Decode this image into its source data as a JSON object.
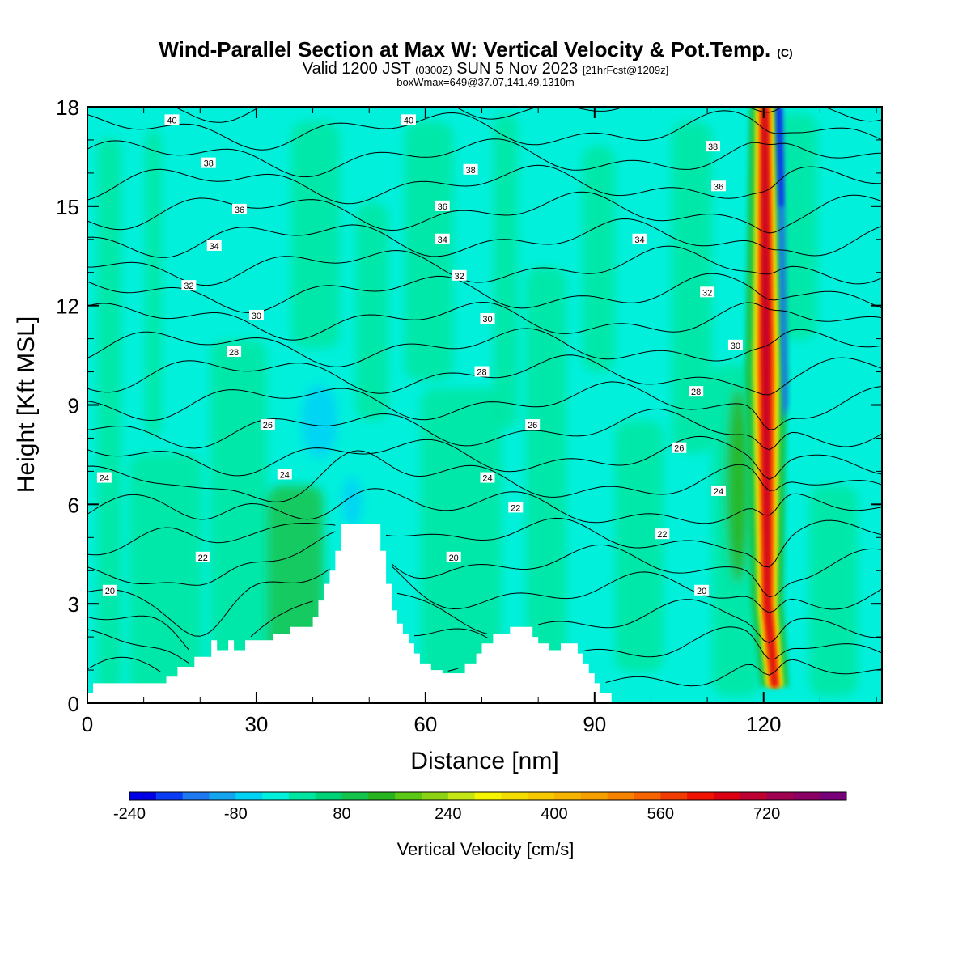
{
  "chart_data": {
    "type": "heatmap",
    "title": "Wind-Parallel Section at Max W: Vertical Velocity & Pot.Temp.",
    "title_mark": "(C)",
    "subtitle_main": "Valid 1200 JST",
    "subtitle_utc": "(0300Z)",
    "subtitle_date": "SUN 5 Nov 2023",
    "subtitle_fcst": "[21hrFcst@1209z]",
    "subtitle2": "boxWmax=649@37.07,141.49,1310m",
    "xlabel": "Distance [nm]",
    "ylabel": "Height [Kft MSL]",
    "xlim": [
      0,
      141
    ],
    "ylim": [
      0,
      18
    ],
    "x_ticks": [
      0,
      30,
      60,
      90,
      120
    ],
    "y_ticks": [
      0,
      3,
      6,
      9,
      12,
      15,
      18
    ],
    "colorbar": {
      "label": "Vertical Velocity [cm/s]",
      "tick_labels": [
        "-240",
        "-80",
        "80",
        "240",
        "400",
        "560",
        "720"
      ],
      "colors": [
        "#0000e6",
        "#0a3cf5",
        "#1e78f0",
        "#14a5f0",
        "#00d2f5",
        "#00f0dc",
        "#00e6a0",
        "#00d278",
        "#14c34b",
        "#28b41e",
        "#5ac814",
        "#8cd214",
        "#c3e614",
        "#f5f500",
        "#f5dc00",
        "#f5c800",
        "#f5b400",
        "#f5a000",
        "#f58200",
        "#f56400",
        "#f03c00",
        "#f01400",
        "#dc0014",
        "#be0032",
        "#a00050",
        "#8c0064",
        "#780078"
      ]
    },
    "terrain": [
      [
        0,
        0
      ],
      [
        0,
        0.3
      ],
      [
        1,
        0.3
      ],
      [
        1,
        0.6
      ],
      [
        14,
        0.6
      ],
      [
        14,
        0.8
      ],
      [
        16,
        0.8
      ],
      [
        16,
        1.1
      ],
      [
        19,
        1.1
      ],
      [
        19,
        1.4
      ],
      [
        22,
        1.4
      ],
      [
        22,
        1.9
      ],
      [
        23,
        1.9
      ],
      [
        23,
        1.6
      ],
      [
        25,
        1.6
      ],
      [
        25,
        1.9
      ],
      [
        26,
        1.9
      ],
      [
        26,
        1.6
      ],
      [
        28,
        1.6
      ],
      [
        28,
        1.9
      ],
      [
        33,
        1.9
      ],
      [
        33,
        2.1
      ],
      [
        36,
        2.1
      ],
      [
        36,
        2.3
      ],
      [
        40,
        2.3
      ],
      [
        40,
        2.6
      ],
      [
        41,
        2.6
      ],
      [
        41,
        3.1
      ],
      [
        42,
        3.1
      ],
      [
        42,
        3.6
      ],
      [
        43,
        3.6
      ],
      [
        43,
        4.0
      ],
      [
        44,
        4.0
      ],
      [
        44,
        4.6
      ],
      [
        45,
        4.6
      ],
      [
        45,
        5.4
      ],
      [
        52,
        5.4
      ],
      [
        52,
        4.6
      ],
      [
        53,
        4.6
      ],
      [
        53,
        3.6
      ],
      [
        54,
        3.6
      ],
      [
        54,
        2.8
      ],
      [
        55,
        2.8
      ],
      [
        55,
        2.4
      ],
      [
        56,
        2.4
      ],
      [
        56,
        2.1
      ],
      [
        57,
        2.1
      ],
      [
        57,
        1.8
      ],
      [
        58,
        1.8
      ],
      [
        58,
        1.5
      ],
      [
        59,
        1.5
      ],
      [
        59,
        1.2
      ],
      [
        61,
        1.2
      ],
      [
        61,
        1.0
      ],
      [
        63,
        1.0
      ],
      [
        63,
        0.9
      ],
      [
        67,
        0.9
      ],
      [
        67,
        1.2
      ],
      [
        69,
        1.2
      ],
      [
        69,
        1.5
      ],
      [
        70,
        1.5
      ],
      [
        70,
        1.8
      ],
      [
        72,
        1.8
      ],
      [
        72,
        2.1
      ],
      [
        75,
        2.1
      ],
      [
        75,
        2.3
      ],
      [
        79,
        2.3
      ],
      [
        79,
        2.0
      ],
      [
        80,
        2.0
      ],
      [
        80,
        1.8
      ],
      [
        82,
        1.8
      ],
      [
        82,
        1.6
      ],
      [
        84,
        1.6
      ],
      [
        84,
        1.8
      ],
      [
        87,
        1.8
      ],
      [
        87,
        1.5
      ],
      [
        88,
        1.5
      ],
      [
        88,
        1.2
      ],
      [
        89,
        1.2
      ],
      [
        89,
        0.9
      ],
      [
        90,
        0.9
      ],
      [
        90,
        0.6
      ],
      [
        91,
        0.6
      ],
      [
        91,
        0.3
      ],
      [
        93,
        0.3
      ],
      [
        93,
        0
      ],
      [
        141,
        0
      ]
    ],
    "theta_levels": [
      20,
      22,
      24,
      26,
      28,
      30,
      32,
      34,
      36,
      38,
      40
    ],
    "contour_labels": [
      {
        "text": "40",
        "x": 15,
        "y": 17.6
      },
      {
        "text": "40",
        "x": 57,
        "y": 17.6
      },
      {
        "text": "38",
        "x": 21.5,
        "y": 16.3
      },
      {
        "text": "38",
        "x": 68,
        "y": 16.1
      },
      {
        "text": "38",
        "x": 111,
        "y": 16.8
      },
      {
        "text": "36",
        "x": 27,
        "y": 14.9
      },
      {
        "text": "36",
        "x": 63,
        "y": 15.0
      },
      {
        "text": "36",
        "x": 112,
        "y": 15.6
      },
      {
        "text": "34",
        "x": 22.5,
        "y": 13.8
      },
      {
        "text": "34",
        "x": 63,
        "y": 14.0
      },
      {
        "text": "34",
        "x": 98,
        "y": 14.0
      },
      {
        "text": "32",
        "x": 18,
        "y": 12.6
      },
      {
        "text": "32",
        "x": 66,
        "y": 12.9
      },
      {
        "text": "32",
        "x": 110,
        "y": 12.4
      },
      {
        "text": "30",
        "x": 30,
        "y": 11.7
      },
      {
        "text": "30",
        "x": 71,
        "y": 11.6
      },
      {
        "text": "30",
        "x": 115,
        "y": 10.8
      },
      {
        "text": "28",
        "x": 26,
        "y": 10.6
      },
      {
        "text": "28",
        "x": 70,
        "y": 10.0
      },
      {
        "text": "28",
        "x": 108,
        "y": 9.4
      },
      {
        "text": "26",
        "x": 32,
        "y": 8.4
      },
      {
        "text": "26",
        "x": 79,
        "y": 8.4
      },
      {
        "text": "26",
        "x": 105,
        "y": 7.7
      },
      {
        "text": "24",
        "x": 3,
        "y": 6.8
      },
      {
        "text": "24",
        "x": 35,
        "y": 6.9
      },
      {
        "text": "24",
        "x": 71,
        "y": 6.8
      },
      {
        "text": "24",
        "x": 112,
        "y": 6.4
      },
      {
        "text": "22",
        "x": 20.5,
        "y": 4.4
      },
      {
        "text": "22",
        "x": 76,
        "y": 5.9
      },
      {
        "text": "22",
        "x": 102,
        "y": 5.1
      },
      {
        "text": "20",
        "x": 4,
        "y": 3.4
      },
      {
        "text": "20",
        "x": 65,
        "y": 4.4
      },
      {
        "text": "20",
        "x": 109,
        "y": 3.4
      }
    ]
  }
}
